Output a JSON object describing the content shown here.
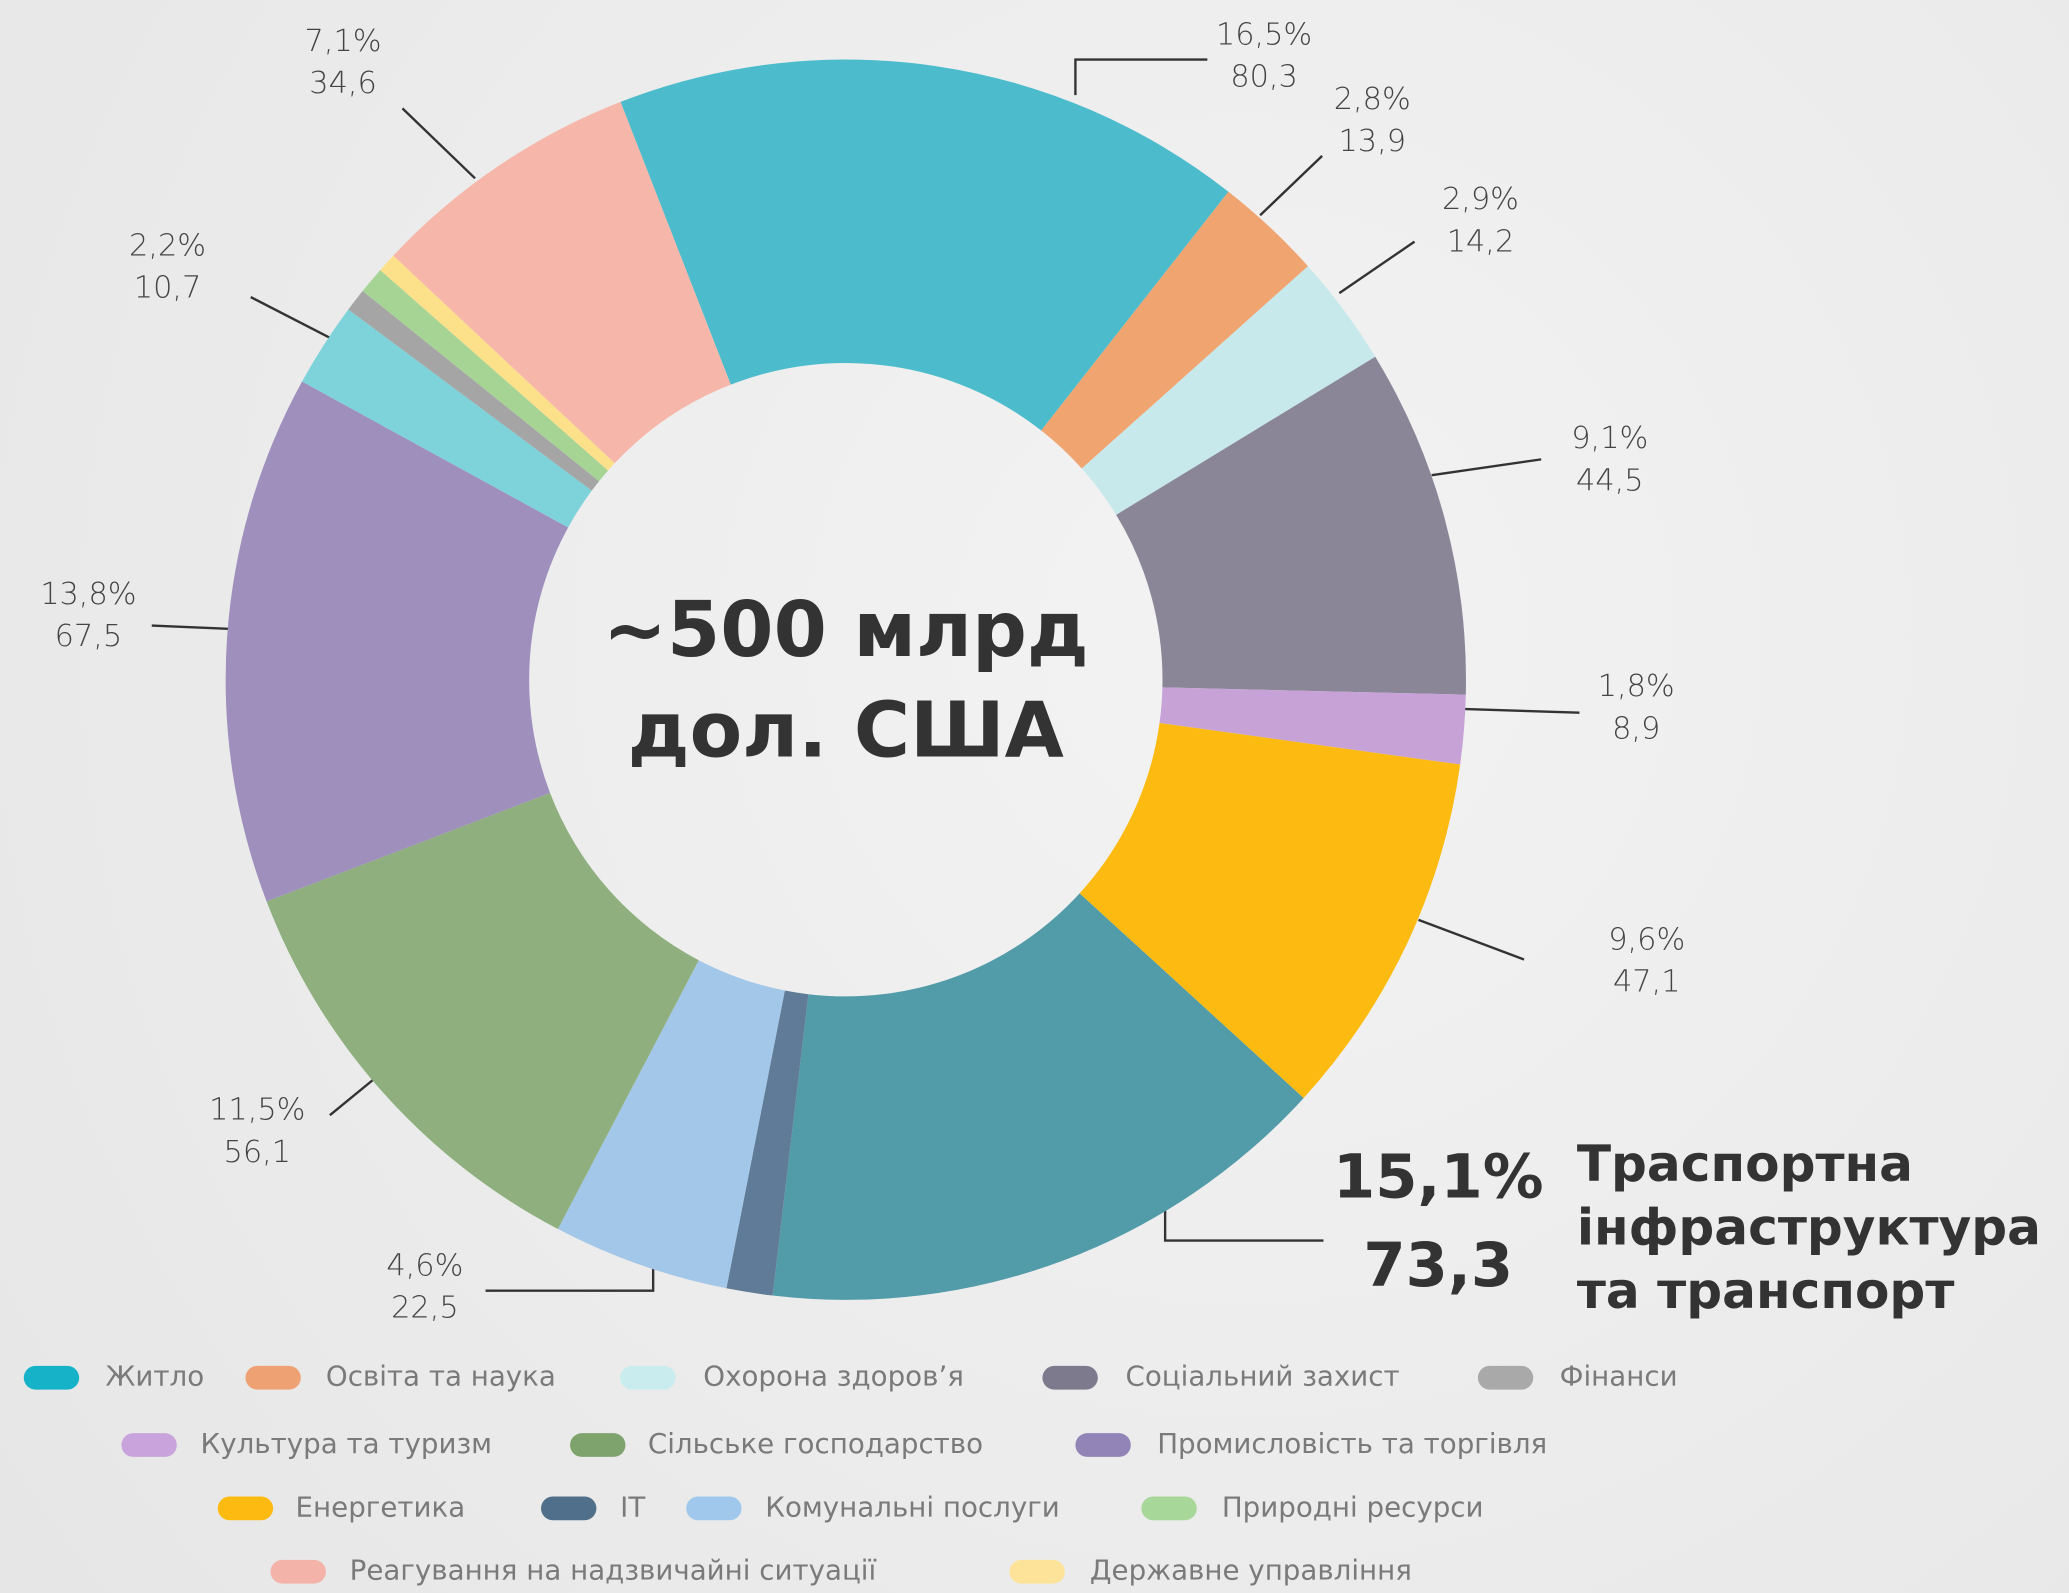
{
  "chart_data": {
    "type": "donut",
    "center_label": "~500 млрд дол. США",
    "values": [
      16.5,
      2.8,
      2.9,
      9.1,
      1.8,
      9.6,
      15.1,
      1.2,
      4.6,
      11.5,
      13.8,
      2.2,
      0.6,
      0.7,
      0.5,
      7.1
    ],
    "value_labels": [
      "16,5%",
      "2,8%",
      "2,9%",
      "9,1%",
      "1,8%",
      "9,6%",
      "15,1%",
      null,
      "4,6%",
      "11,5%",
      "13,8%",
      "2,2%",
      null,
      null,
      null,
      "7,1%"
    ],
    "amounts": [
      80.3,
      13.9,
      14.2,
      44.5,
      8.9,
      47.1,
      73.3,
      null,
      22.5,
      56.1,
      67.5,
      10.7,
      null,
      null,
      null,
      34.6
    ],
    "amount_labels": [
      "80,3",
      "13,9",
      "14,2",
      "44,5",
      "8,9",
      "47,1",
      "73,3",
      null,
      "22,5",
      "56,1",
      "67,5",
      "10,7",
      null,
      null,
      null,
      "34,6"
    ],
    "colors": [
      "#4cbccc",
      "#f0a470",
      "#c7e9eb",
      "#8a8698",
      "#c6a2d6",
      "#fdbb12",
      "#529ba8",
      "#5f7b97",
      "#a3c7e9",
      "#8fb07e",
      "#9e8fbc",
      "#7ed2da",
      "#a5a5a5",
      "#a6d495",
      "#fde08a",
      "#f6b7aa"
    ],
    "highlight": {
      "index": 6,
      "label": "Траспортна інфраструктура та транспорт"
    },
    "legend": [
      {
        "name": "Житло",
        "color": "#16b3c8"
      },
      {
        "name": "Освіта та наука",
        "color": "#eea274"
      },
      {
        "name": "Охорона здоров’я",
        "color": "#c9ecef"
      },
      {
        "name": "Соціальний захист",
        "color": "#7e7a8e"
      },
      {
        "name": "Фінанси",
        "color": "#a9a9a9"
      },
      {
        "name": "Культура та туризм",
        "color": "#c9a4dc"
      },
      {
        "name": "Сільське господарство",
        "color": "#7ea36d"
      },
      {
        "name": "Промисловість та торгівля",
        "color": "#9384b8"
      },
      {
        "name": "Енергетика",
        "color": "#fdbb11"
      },
      {
        "name": "IT",
        "color": "#4f6f8a"
      },
      {
        "name": "Комунальні послуги",
        "color": "#9fc8ec"
      },
      {
        "name": "Природні ресурси",
        "color": "#a8d79a"
      },
      {
        "name": "Реагування на надзвичайні ситуації",
        "color": "#f4b3a8"
      },
      {
        "name": "Державне управління",
        "color": "#fde39a"
      }
    ]
  }
}
